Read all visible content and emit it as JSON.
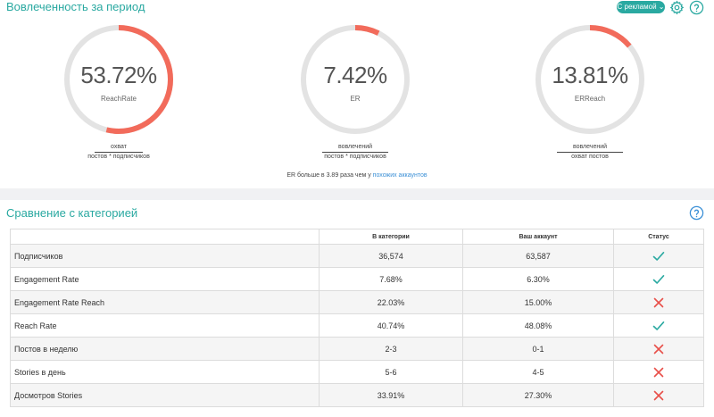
{
  "engagement": {
    "title": "Вовлеченность за период",
    "ads_filter": "С рекламой",
    "gauges": [
      {
        "value": "53.72%",
        "label": "ReachRate",
        "fraction": 0.5372,
        "numerator": "охват",
        "denominator": "постов * подписчиков"
      },
      {
        "value": "7.42%",
        "label": "ER",
        "fraction": 0.0742,
        "numerator": "вовлечений",
        "denominator": "постов * подписчиков"
      },
      {
        "value": "13.81%",
        "label": "ERReach",
        "fraction": 0.1381,
        "numerator": "вовлечений",
        "denominator": "охват постов"
      }
    ],
    "er_note": "ER больше в 3.89 раза чем у",
    "er_link": "похожих аккаунтов"
  },
  "comparison": {
    "title": "Сравнение с категорией",
    "columns": [
      "",
      "В категории",
      "Ваш аккаунт",
      "Статус"
    ],
    "rows": [
      {
        "name": "Подписчиков",
        "category": "36,574",
        "account": "63,587",
        "status": "ok"
      },
      {
        "name": "Engagement Rate",
        "category": "7.68%",
        "account": "6.30%",
        "status": "ok"
      },
      {
        "name": "Engagement Rate Reach",
        "category": "22.03%",
        "account": "15.00%",
        "status": "bad"
      },
      {
        "name": "Reach Rate",
        "category": "40.74%",
        "account": "48.08%",
        "status": "ok"
      },
      {
        "name": "Постов в неделю",
        "category": "2-3",
        "account": "0-1",
        "status": "bad"
      },
      {
        "name": "Stories в день",
        "category": "5-6",
        "account": "4-5",
        "status": "bad"
      },
      {
        "name": "Досмотров Stories",
        "category": "33.91%",
        "account": "27.30%",
        "status": "bad"
      }
    ]
  },
  "colors": {
    "accent": "#2aa9a1",
    "gauge_track": "#e3e3e3",
    "gauge_fill": "#f26b5b",
    "ok": "#2aa9a1",
    "bad": "#e8504a",
    "link": "#3a8fd6"
  },
  "icons": {
    "settings": "gear-icon",
    "help": "help-icon",
    "ok": "check-icon",
    "bad": "cross-icon"
  }
}
